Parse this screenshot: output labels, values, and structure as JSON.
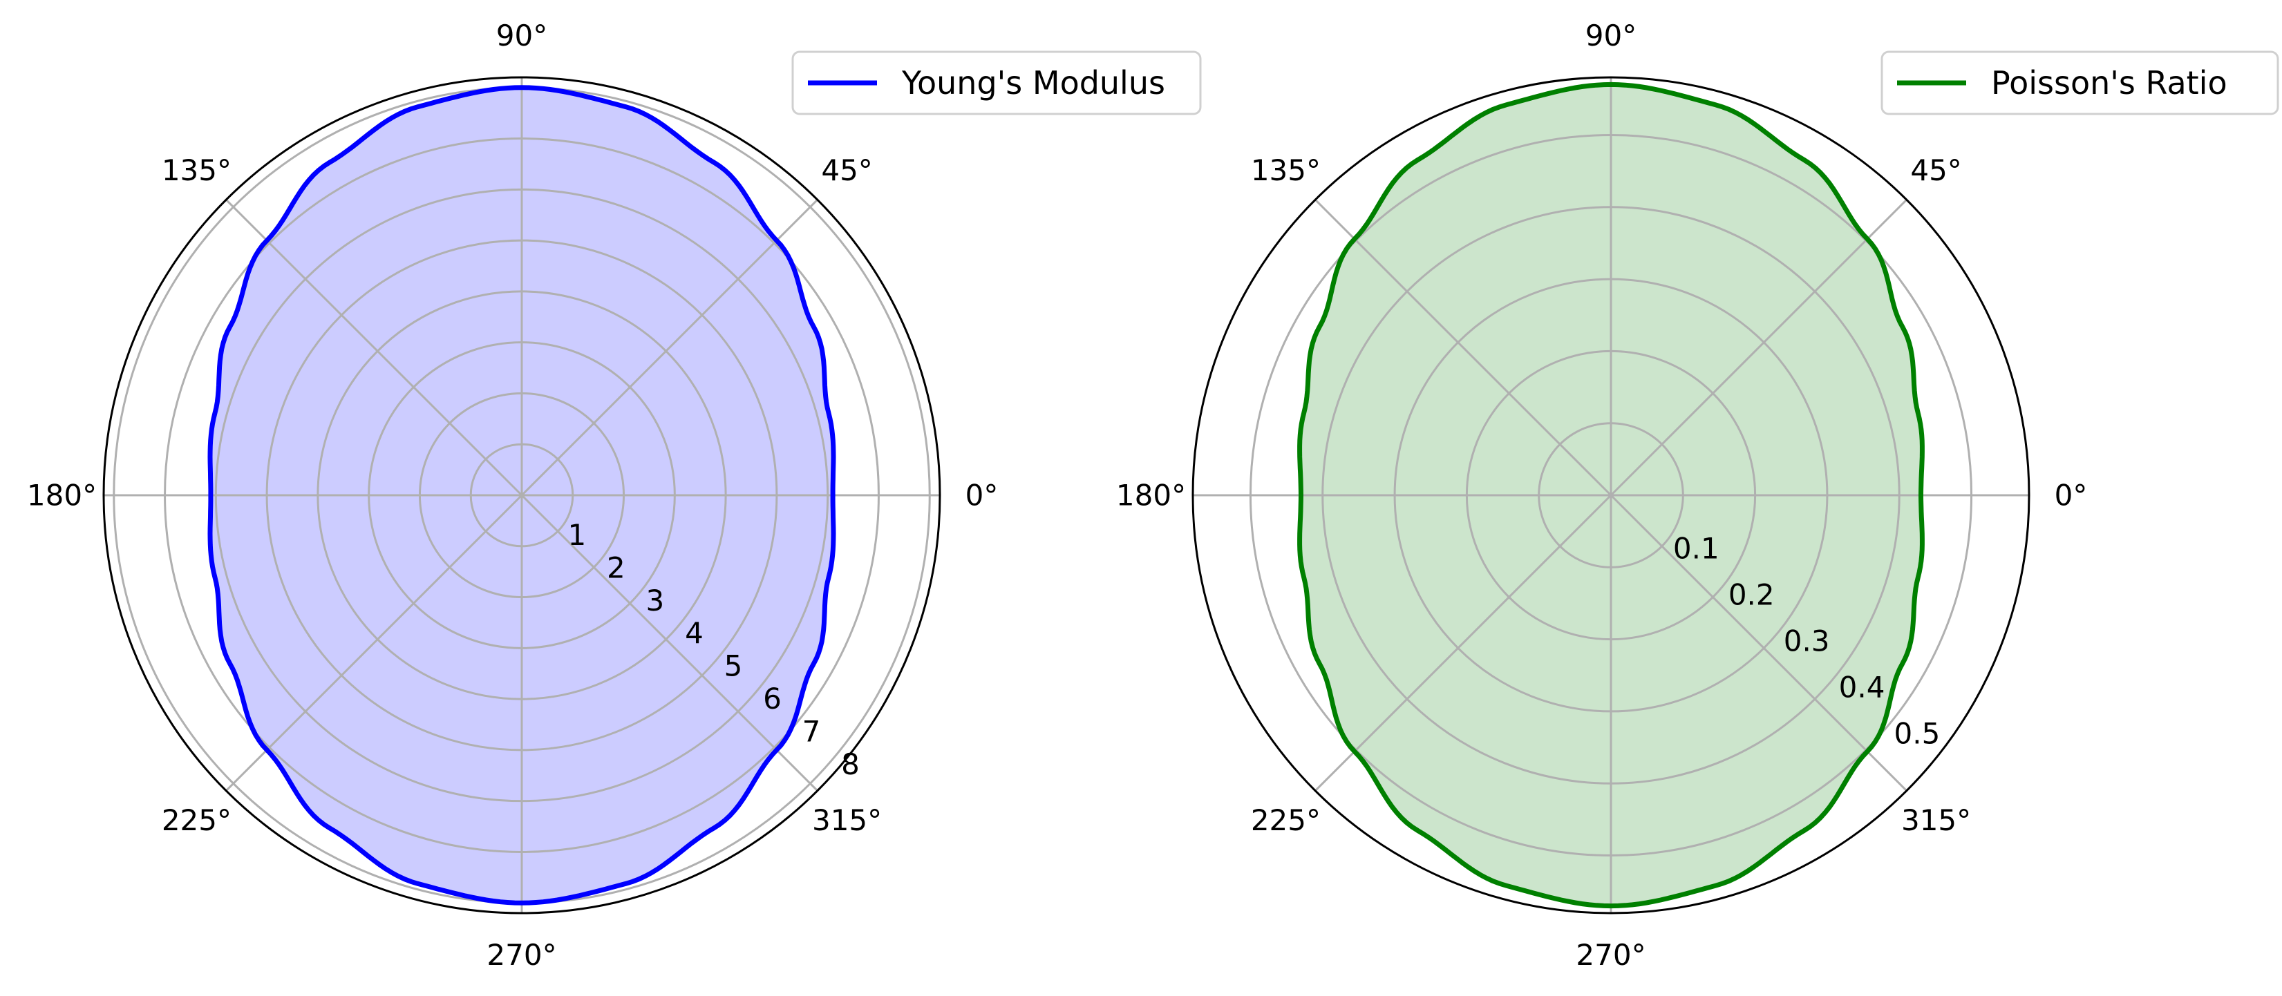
{
  "chart_data": [
    {
      "type": "polar-line",
      "title": "",
      "angle_ticks": [
        "0°",
        "45°",
        "90°",
        "135°",
        "180°",
        "225°",
        "270°",
        "315°"
      ],
      "angle_tick_values_deg": [
        0,
        45,
        90,
        135,
        180,
        225,
        270,
        315
      ],
      "r_ticks": [
        "1",
        "2",
        "3",
        "4",
        "5",
        "6",
        "7",
        "8"
      ],
      "r_tick_values": [
        1,
        2,
        3,
        4,
        5,
        6,
        7,
        8
      ],
      "rlim": [
        0,
        8.2
      ],
      "grid": true,
      "legend_position": "top-right",
      "series": [
        {
          "name": "Young's Modulus",
          "color": "#0000ff",
          "fill": "#ccccff",
          "theta_deg": [
            0,
            15,
            30,
            45,
            60,
            75,
            90,
            105,
            120,
            135,
            150,
            165,
            180,
            195,
            210,
            225,
            240,
            255,
            270,
            285,
            300,
            315,
            330,
            345,
            360
          ],
          "r": [
            6.1,
            6.23,
            6.61,
            7.07,
            7.54,
            7.89,
            8.0,
            7.89,
            7.54,
            7.07,
            6.61,
            6.23,
            6.1,
            6.23,
            6.61,
            7.07,
            7.54,
            7.89,
            8.0,
            7.89,
            7.54,
            7.07,
            6.61,
            6.23,
            6.1
          ]
        }
      ]
    },
    {
      "type": "polar-line",
      "title": "",
      "angle_ticks": [
        "0°",
        "45°",
        "90°",
        "135°",
        "180°",
        "225°",
        "270°",
        "315°"
      ],
      "angle_tick_values_deg": [
        0,
        45,
        90,
        135,
        180,
        225,
        270,
        315
      ],
      "r_ticks": [
        "0.1",
        "0.2",
        "0.3",
        "0.4",
        "0.5"
      ],
      "r_tick_values": [
        0.1,
        0.2,
        0.3,
        0.4,
        0.5
      ],
      "rlim": [
        0,
        0.58
      ],
      "grid": true,
      "legend_position": "top-right",
      "series": [
        {
          "name": "Poisson's Ratio",
          "color": "#008000",
          "fill": "#cce5cc",
          "theta_deg": [
            0,
            15,
            30,
            45,
            60,
            75,
            90,
            105,
            120,
            135,
            150,
            165,
            180,
            195,
            210,
            225,
            240,
            255,
            270,
            285,
            300,
            315,
            330,
            345,
            360
          ],
          "r": [
            0.43,
            0.441,
            0.467,
            0.503,
            0.537,
            0.561,
            0.57,
            0.561,
            0.537,
            0.503,
            0.467,
            0.441,
            0.43,
            0.441,
            0.467,
            0.503,
            0.537,
            0.561,
            0.57,
            0.561,
            0.537,
            0.503,
            0.467,
            0.441,
            0.43
          ]
        }
      ]
    }
  ]
}
